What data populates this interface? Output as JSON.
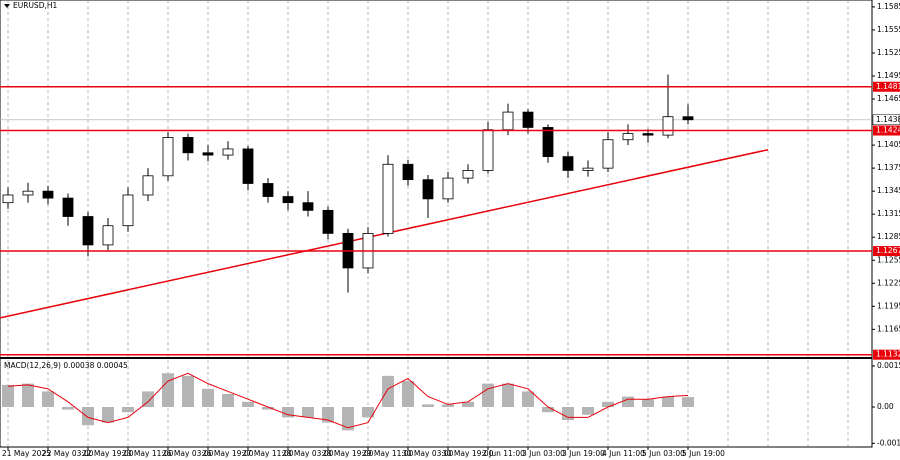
{
  "chart_data": [
    {
      "type": "candlestick",
      "title": "EURUSD,H1",
      "categories": [
        "21 May 2025",
        null,
        "22 May 03:00",
        null,
        "22 May 19:00",
        null,
        "23 May 11:00",
        null,
        "26 May 03:00",
        null,
        "26 May 19:00",
        null,
        "27 May 11:00",
        null,
        "28 May 03:00",
        null,
        "28 May 19:00",
        null,
        "29 May 11:00",
        null,
        "30 May 03:00",
        null,
        "30 May 19:00",
        null,
        "2 Jun 11:00",
        null,
        "3 Jun 03:00",
        null,
        "3 Jun 19:00",
        null,
        "4 Jun 11:00",
        null,
        "5 Jun 03:00",
        null,
        "5 Jun 19:00"
      ],
      "open": [
        1.133,
        1.134,
        1.1345,
        1.1336,
        1.1312,
        1.1275,
        1.13,
        1.134,
        1.1365,
        1.1415,
        1.1395,
        1.1392,
        1.14,
        1.1355,
        1.1338,
        1.133,
        1.132,
        1.129,
        1.1245,
        1.129,
        1.138,
        1.136,
        1.1335,
        1.1362,
        1.1372,
        1.1425,
        1.1448,
        1.1428,
        1.139,
        1.1372,
        1.1375,
        1.1412,
        1.142,
        1.1418,
        1.1442
      ],
      "high": [
        1.135,
        1.1356,
        1.1352,
        1.1342,
        1.1318,
        1.131,
        1.135,
        1.1375,
        1.1422,
        1.142,
        1.1405,
        1.141,
        1.1404,
        1.1362,
        1.1345,
        1.1345,
        1.1325,
        1.1296,
        1.1298,
        1.1392,
        1.1386,
        1.1366,
        1.137,
        1.138,
        1.1435,
        1.1459,
        1.1452,
        1.1432,
        1.1396,
        1.1385,
        1.1422,
        1.1432,
        1.1426,
        1.1497,
        1.1458
      ],
      "low": [
        1.1322,
        1.133,
        1.1328,
        1.13,
        1.126,
        1.1268,
        1.1292,
        1.1332,
        1.1358,
        1.1385,
        1.1384,
        1.1386,
        1.1346,
        1.133,
        1.132,
        1.1312,
        1.1282,
        1.1213,
        1.1238,
        1.1286,
        1.1352,
        1.131,
        1.133,
        1.1355,
        1.1368,
        1.1418,
        1.142,
        1.1382,
        1.1362,
        1.1364,
        1.137,
        1.1405,
        1.1408,
        1.1414,
        1.1432
      ],
      "close": [
        1.134,
        1.1345,
        1.1336,
        1.1312,
        1.1275,
        1.13,
        1.134,
        1.1365,
        1.1415,
        1.1395,
        1.1392,
        1.14,
        1.1355,
        1.1338,
        1.133,
        1.132,
        1.129,
        1.1245,
        1.129,
        1.138,
        1.136,
        1.1335,
        1.1362,
        1.1372,
        1.1425,
        1.1448,
        1.1428,
        1.139,
        1.1372,
        1.1375,
        1.1412,
        1.142,
        1.1418,
        1.1442,
        1.1438
      ],
      "ylim": [
        1.1129,
        1.1594
      ],
      "yticks": [
        1.1165,
        1.1195,
        1.1225,
        1.1255,
        1.1285,
        1.1315,
        1.1345,
        1.1375,
        1.1405,
        1.1465,
        1.1495,
        1.1525,
        1.1555,
        1.1585
      ],
      "levels": [
        1.1481,
        1.1424,
        1.1267,
        1.1132
      ],
      "level_color": "#e8000b",
      "current_price": 1.1438,
      "trendline": {
        "x": [
          0,
          38
        ],
        "y": [
          1.118,
          1.1399
        ]
      }
    },
    {
      "type": "macd",
      "title": "MACD(12,26,9) 0.00038 0.00045",
      "values": [
        0.00085,
        0.0009,
        0.0006,
        -0.0001,
        -0.0007,
        -0.0006,
        -0.0002,
        0.0006,
        0.0013,
        0.0012,
        0.0007,
        0.0005,
        0.0002,
        -0.0001,
        -0.0004,
        -0.0004,
        -0.0006,
        -0.0009,
        -0.0004,
        0.0012,
        0.001,
        0.0001,
        0.0001,
        0.0002,
        0.0009,
        0.0009,
        0.0006,
        -0.0002,
        -0.0005,
        -0.0003,
        0.0002,
        0.0004,
        0.0003,
        0.0004,
        0.00038
      ],
      "signal": [
        0.0008,
        0.00085,
        0.0007,
        0.0002,
        -0.0004,
        -0.0006,
        -0.0004,
        0.0002,
        0.001,
        0.0013,
        0.0009,
        0.0006,
        0.0003,
        0.0,
        -0.0003,
        -0.0004,
        -0.0005,
        -0.0008,
        -0.0006,
        0.0007,
        0.0011,
        0.0004,
        0.0001,
        0.0002,
        0.0007,
        0.0009,
        0.0007,
        0.0,
        -0.0004,
        -0.0004,
        0.0,
        0.0003,
        0.0003,
        0.0004,
        0.00045
      ],
      "color": "#b4b4b4",
      "signal_color": "#e8000b",
      "ylim": [
        -0.00154,
        0.00181
      ],
      "yticks": [
        0.00158,
        {
          "value": 0,
          "label": "0.00"
        },
        -0.0014
      ]
    }
  ]
}
